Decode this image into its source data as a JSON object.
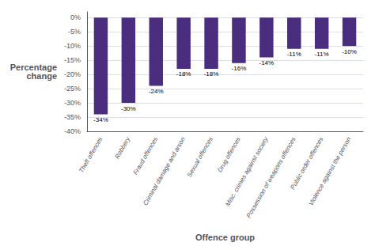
{
  "chart_data": {
    "type": "bar",
    "categories": [
      "Theft offences",
      "Robbery",
      "Fraud offences",
      "Criminal damage and arson",
      "Sexual offences",
      "Drug offences",
      "Misc. crimes against society",
      "Possession of weapons offences",
      "Public order offences",
      "Violence against the person"
    ],
    "values": [
      -34,
      -30,
      -24,
      -18,
      -18,
      -16,
      -14,
      -11,
      -11,
      -10
    ],
    "value_labels": [
      "-34%",
      "-30%",
      "-24%",
      "-18%",
      "-18%",
      "-16%",
      "-14%",
      "-11%",
      "-11%",
      "-10%"
    ],
    "data_labels": true,
    "color": "#4b2d7f",
    "xlabel": "Offence group",
    "ylabel": "Percentage\nchange",
    "ylim": [
      -40,
      2
    ],
    "yticks": [
      {
        "value": 0,
        "label": "0%"
      },
      {
        "value": -5,
        "label": "-5%"
      },
      {
        "value": -10,
        "label": "-10%"
      },
      {
        "value": -15,
        "label": "-15%"
      },
      {
        "value": -20,
        "label": "-20%"
      },
      {
        "value": -25,
        "label": "-25%"
      },
      {
        "value": -30,
        "label": "-30%"
      },
      {
        "value": -35,
        "label": "-35%"
      },
      {
        "value": -40,
        "label": "-40%"
      }
    ],
    "grid": true
  }
}
